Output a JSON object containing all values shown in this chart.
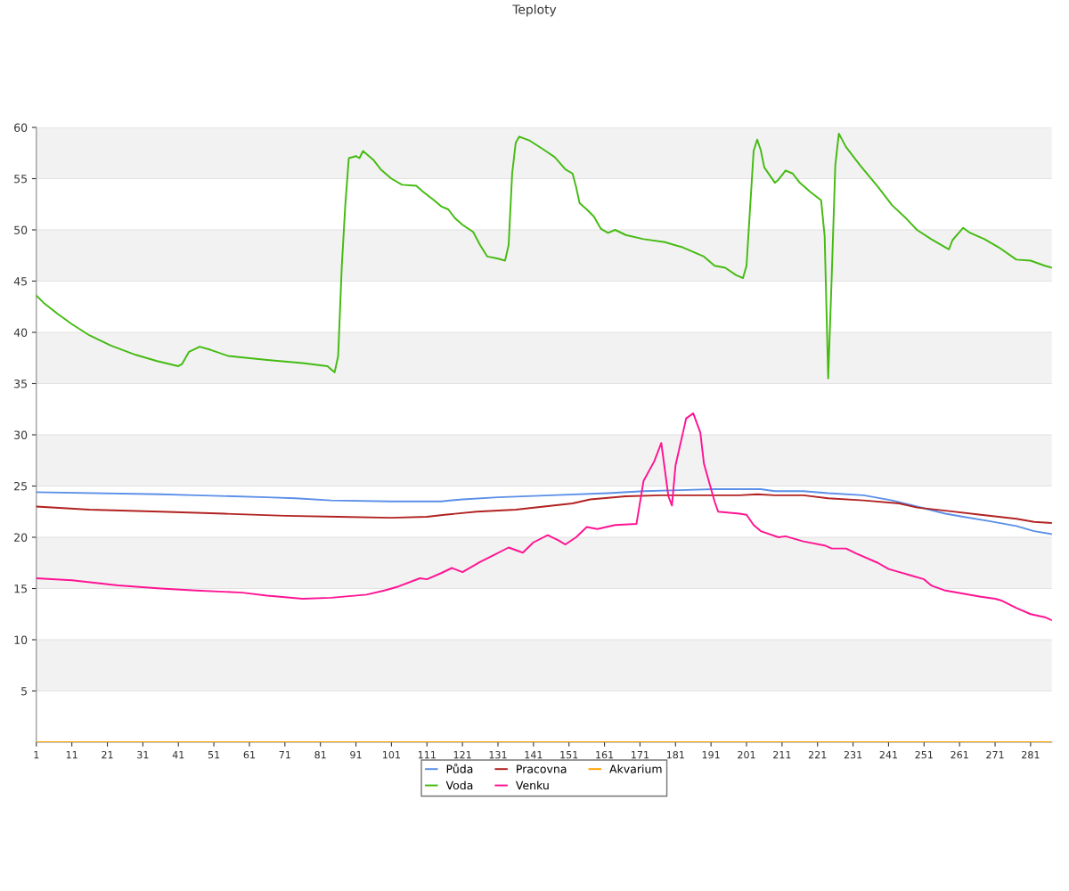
{
  "chart_data": {
    "type": "line",
    "title": "Teploty",
    "xlim": [
      1,
      287
    ],
    "xticks": [
      1,
      11,
      21,
      31,
      41,
      51,
      61,
      71,
      81,
      91,
      101,
      111,
      121,
      131,
      141,
      151,
      161,
      171,
      181,
      191,
      201,
      211,
      221,
      231,
      241,
      251,
      261,
      271,
      281
    ],
    "ylim": [
      0,
      60
    ],
    "yticks": [
      5,
      10,
      15,
      20,
      25,
      30,
      35,
      40,
      45,
      50,
      55,
      60
    ],
    "grid": "y",
    "legend": "bottom",
    "marker": "none",
    "line_style": "solid",
    "bands": [
      {
        "axis": "y",
        "from": 5,
        "to": 10,
        "color": "#f2f2f2"
      },
      {
        "axis": "y",
        "from": 15,
        "to": 20,
        "color": "#f2f2f2"
      },
      {
        "axis": "y",
        "from": 25,
        "to": 30,
        "color": "#f2f2f2"
      },
      {
        "axis": "y",
        "from": 35,
        "to": 40,
        "color": "#f2f2f2"
      },
      {
        "axis": "y",
        "from": 45,
        "to": 50,
        "color": "#f2f2f2"
      },
      {
        "axis": "y",
        "from": 55,
        "to": 60,
        "color": "#f2f2f2"
      }
    ],
    "series": [
      {
        "name": "Půda",
        "color": "#5b8fe8",
        "x": [
          1,
          36,
          46,
          66,
          74,
          84,
          101,
          115,
          121,
          131,
          146,
          162,
          172,
          182,
          192,
          205,
          209,
          217,
          224,
          234,
          242,
          249,
          257,
          262,
          269,
          277,
          282,
          287
        ],
        "values": [
          24.4,
          24.2,
          24.1,
          23.9,
          23.8,
          23.6,
          23.5,
          23.5,
          23.7,
          23.9,
          24.1,
          24.3,
          24.5,
          24.6,
          24.7,
          24.7,
          24.5,
          24.5,
          24.3,
          24.1,
          23.6,
          23.0,
          22.3,
          22.0,
          21.6,
          21.1,
          20.6,
          20.3
        ]
      },
      {
        "name": "Voda",
        "color": "#44bb11",
        "x": [
          1,
          3,
          7,
          11,
          16,
          22,
          29,
          35,
          41,
          42,
          44,
          47,
          50,
          55,
          66,
          76,
          83,
          84,
          85,
          86,
          87,
          88,
          89,
          91,
          92,
          93,
          96,
          98,
          101,
          104,
          108,
          110,
          113,
          115,
          117,
          119,
          121,
          124,
          126,
          128,
          131,
          133,
          134,
          135,
          136,
          137,
          140,
          144,
          147,
          150,
          152,
          153,
          154,
          156,
          158,
          160,
          162,
          164,
          167,
          172,
          178,
          183,
          189,
          192,
          195,
          198,
          200,
          201,
          203,
          204,
          205,
          206,
          209,
          210,
          212,
          214,
          216,
          219,
          222,
          223,
          224,
          225,
          226,
          227,
          229,
          233,
          238,
          242,
          246,
          249,
          253,
          257,
          258,
          259,
          261,
          262,
          264,
          268,
          272,
          277,
          281,
          285,
          287
        ],
        "values": [
          43.6,
          42.9,
          41.8,
          40.8,
          39.7,
          38.7,
          37.8,
          37.2,
          36.7,
          36.9,
          38.1,
          38.6,
          38.3,
          37.7,
          37.3,
          37.0,
          36.7,
          36.4,
          36.1,
          37.7,
          46.3,
          52.4,
          57.0,
          57.2,
          57.0,
          57.7,
          56.8,
          55.9,
          55.0,
          54.4,
          54.3,
          53.7,
          52.9,
          52.3,
          52.0,
          51.1,
          50.5,
          49.8,
          48.5,
          47.4,
          47.2,
          47.0,
          48.5,
          55.5,
          58.5,
          59.1,
          58.7,
          57.8,
          57.1,
          55.9,
          55.5,
          54.2,
          52.6,
          52.0,
          51.3,
          50.1,
          49.7,
          50.0,
          49.5,
          49.1,
          48.8,
          48.3,
          47.4,
          46.5,
          46.3,
          45.6,
          45.3,
          46.5,
          57.7,
          58.8,
          57.8,
          56.1,
          54.6,
          54.9,
          55.8,
          55.5,
          54.6,
          53.7,
          52.9,
          49.4,
          35.5,
          45.5,
          56.3,
          59.4,
          58.1,
          56.3,
          54.2,
          52.4,
          51.1,
          50.0,
          49.1,
          48.3,
          48.1,
          49.0,
          49.8,
          50.2,
          49.7,
          49.1,
          48.3,
          47.1,
          47.0,
          46.5,
          46.3
        ]
      },
      {
        "name": "Pracovna",
        "color": "#b22222",
        "x": [
          1,
          16,
          36,
          54,
          71,
          86,
          101,
          111,
          116,
          125,
          136,
          144,
          152,
          157,
          167,
          177,
          199,
          204,
          209,
          217,
          224,
          234,
          244,
          249,
          257,
          267,
          277,
          282,
          287
        ],
        "values": [
          23.0,
          22.7,
          22.5,
          22.3,
          22.1,
          22.0,
          21.9,
          22.0,
          22.2,
          22.5,
          22.7,
          23.0,
          23.3,
          23.7,
          24.0,
          24.1,
          24.1,
          24.2,
          24.1,
          24.1,
          23.8,
          23.6,
          23.3,
          22.9,
          22.6,
          22.2,
          21.8,
          21.5,
          21.4
        ]
      },
      {
        "name": "Venku",
        "color": "#ff1493",
        "x": [
          1,
          11,
          24,
          36,
          46,
          59,
          66,
          76,
          84,
          94,
          99,
          103,
          109,
          111,
          115,
          118,
          121,
          126,
          130,
          134,
          138,
          141,
          145,
          148,
          150,
          153,
          156,
          159,
          164,
          170,
          172,
          175,
          177,
          179,
          180,
          181,
          184,
          186,
          188,
          189,
          192,
          193,
          199,
          201,
          203,
          205,
          210,
          212,
          217,
          223,
          225,
          229,
          232,
          238,
          241,
          247,
          251,
          253,
          257,
          262,
          267,
          271,
          273,
          277,
          281,
          285,
          287
        ],
        "values": [
          16.0,
          15.8,
          15.3,
          15.0,
          14.8,
          14.6,
          14.3,
          14.0,
          14.1,
          14.4,
          14.8,
          15.2,
          16.0,
          15.9,
          16.5,
          17.0,
          16.6,
          17.6,
          18.3,
          19.0,
          18.5,
          19.5,
          20.2,
          19.7,
          19.3,
          20.0,
          21.0,
          20.8,
          21.2,
          21.3,
          25.5,
          27.4,
          29.2,
          24.0,
          23.1,
          27.0,
          31.6,
          32.1,
          30.2,
          27.2,
          23.5,
          22.5,
          22.3,
          22.2,
          21.2,
          20.6,
          20.0,
          20.1,
          19.6,
          19.2,
          18.9,
          18.9,
          18.4,
          17.5,
          16.9,
          16.3,
          15.9,
          15.3,
          14.8,
          14.5,
          14.2,
          14.0,
          13.8,
          13.1,
          12.5,
          12.2,
          11.9
        ]
      },
      {
        "name": "Akvarium",
        "color": "#ffa500",
        "x": [
          1,
          287
        ],
        "values": [
          0,
          0
        ]
      }
    ]
  }
}
